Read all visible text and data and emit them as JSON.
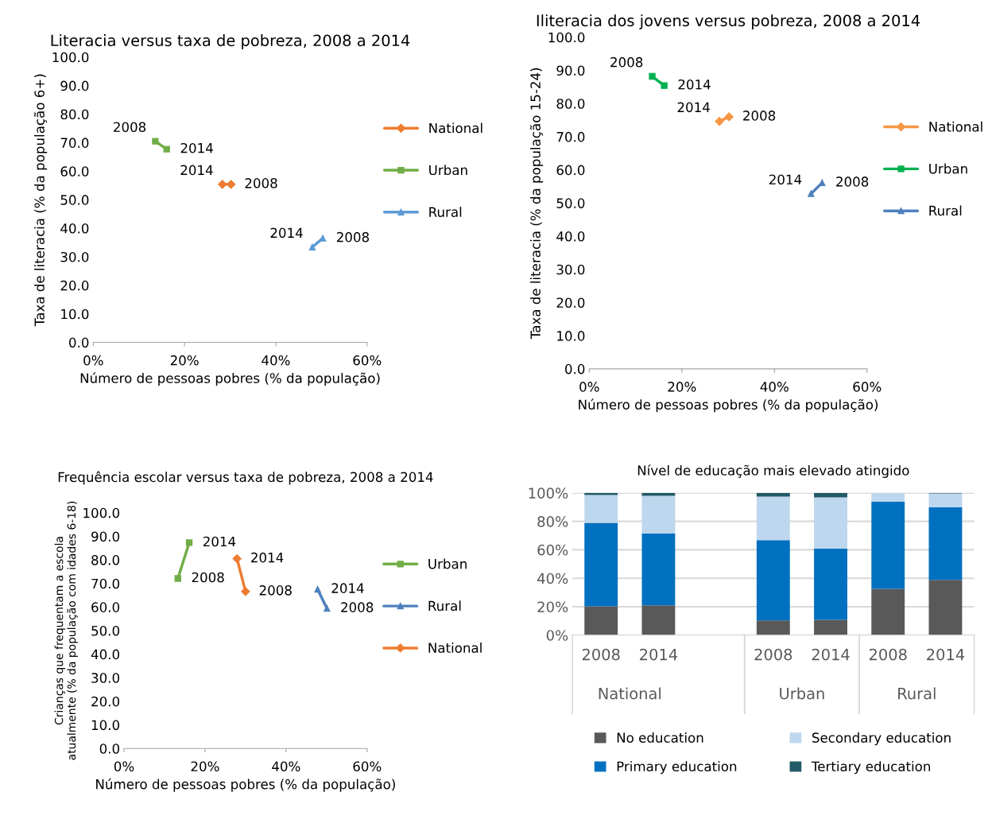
{
  "chart_data": [
    {
      "type": "line",
      "title": "Literacia versus taxa de pobreza, 2008 a 2014",
      "xlabel": "Número de pessoas pobres (% da população)",
      "ylabel": "Taxa de literacia (% da população 6+)",
      "xlim": [
        0,
        60
      ],
      "xticks": [
        {
          "value": 0,
          "label": "0%"
        },
        {
          "value": 20,
          "label": "20%"
        },
        {
          "value": 40,
          "label": "40%"
        },
        {
          "value": 60,
          "label": "60%"
        }
      ],
      "ylim": [
        0,
        100
      ],
      "yticks": [
        {
          "value": 0,
          "label": "0.0"
        },
        {
          "value": 10,
          "label": "10.0"
        },
        {
          "value": 20,
          "label": "20.0"
        },
        {
          "value": 30,
          "label": "30.0"
        },
        {
          "value": 40,
          "label": "40.0"
        },
        {
          "value": 50,
          "label": "50.0"
        },
        {
          "value": 60,
          "label": "60.0"
        },
        {
          "value": 70,
          "label": "70.0"
        },
        {
          "value": 80,
          "label": "80.0"
        },
        {
          "value": 90,
          "label": "90.0"
        },
        {
          "value": 100,
          "label": "100.0"
        }
      ],
      "grid": false,
      "legend": "right",
      "line_style": "solid",
      "series": [
        {
          "name": "National",
          "color": "#ed7d31",
          "marker": "diamond",
          "x": [
            30.2,
            28.3
          ],
          "values": [
            55.4,
            55.4
          ]
        },
        {
          "name": "Urban",
          "color": "#70ad47",
          "marker": "square",
          "x": [
            13.6,
            16.1
          ],
          "values": [
            70.5,
            67.7
          ]
        },
        {
          "name": "Rural",
          "color": "#5b9bd5",
          "marker": "triangle",
          "x": [
            50.3,
            48.0
          ],
          "values": [
            36.5,
            33.4
          ]
        }
      ],
      "annotations": [
        {
          "text": "2008",
          "x": 30.2,
          "y": 55.4
        },
        {
          "text": "2014",
          "x": 28.3,
          "y": 55.4
        },
        {
          "text": "2008",
          "x": 13.6,
          "y": 70.5
        },
        {
          "text": "2014",
          "x": 16.1,
          "y": 67.7
        },
        {
          "text": "2008",
          "x": 50.3,
          "y": 36.5
        },
        {
          "text": "2014",
          "x": 48.0,
          "y": 33.4
        }
      ]
    },
    {
      "type": "line",
      "title": "Iliteracia dos jovens versus pobreza, 2008 a 2014",
      "xlabel": "Número de pessoas pobres (% da população)",
      "ylabel": "Taxa de literacia (% da população 15-24)",
      "xlim": [
        0,
        60
      ],
      "xticks": [
        {
          "value": 0,
          "label": "0%"
        },
        {
          "value": 20,
          "label": "20%"
        },
        {
          "value": 40,
          "label": "40%"
        },
        {
          "value": 60,
          "label": "60%"
        }
      ],
      "ylim": [
        0,
        100
      ],
      "yticks": [
        {
          "value": 0,
          "label": "0.0"
        },
        {
          "value": 10,
          "label": "10.0"
        },
        {
          "value": 20,
          "label": "20.0"
        },
        {
          "value": 30,
          "label": "30.0"
        },
        {
          "value": 40,
          "label": "40.0"
        },
        {
          "value": 50,
          "label": "50.0"
        },
        {
          "value": 60,
          "label": "60.0"
        },
        {
          "value": 70,
          "label": "70.0"
        },
        {
          "value": 80,
          "label": "80.0"
        },
        {
          "value": 90,
          "label": "90.0"
        },
        {
          "value": 100,
          "label": "100.0"
        }
      ],
      "grid": false,
      "legend": "right",
      "line_style": "solid",
      "series": [
        {
          "name": "National",
          "color": "#f79646",
          "marker": "diamond",
          "x": [
            30.2,
            28.1
          ],
          "values": [
            76.0,
            74.6
          ]
        },
        {
          "name": "Urban",
          "color": "#00b050",
          "marker": "square",
          "x": [
            13.6,
            16.2
          ],
          "values": [
            88.2,
            85.4
          ]
        },
        {
          "name": "Rural",
          "color": "#4f81bd",
          "marker": "triangle",
          "x": [
            50.3,
            47.9
          ],
          "values": [
            56.1,
            52.8
          ]
        }
      ],
      "annotations": [
        {
          "text": "2008",
          "x": 30.2,
          "y": 76.0
        },
        {
          "text": "2014",
          "x": 28.1,
          "y": 74.6
        },
        {
          "text": "2008",
          "x": 13.6,
          "y": 88.2
        },
        {
          "text": "2014",
          "x": 16.2,
          "y": 85.4
        },
        {
          "text": "2008",
          "x": 50.3,
          "y": 56.1
        },
        {
          "text": "2014",
          "x": 47.9,
          "y": 52.8
        }
      ]
    },
    {
      "type": "line",
      "title": "Frequência escolar versus taxa de pobreza, 2008 a 2014",
      "xlabel": "Número de pessoas pobres (% da população)",
      "ylabel": "Crianças que frequentam a escola atualmente (% da população com idades 6-18)",
      "xlim": [
        0,
        60
      ],
      "xticks": [
        {
          "value": 0,
          "label": "0%"
        },
        {
          "value": 20,
          "label": "20%"
        },
        {
          "value": 40,
          "label": "40%"
        },
        {
          "value": 60,
          "label": "60%"
        }
      ],
      "ylim": [
        0,
        100
      ],
      "yticks": [
        {
          "value": 0,
          "label": "0.0"
        },
        {
          "value": 10,
          "label": "10.0"
        },
        {
          "value": 20,
          "label": "20.0"
        },
        {
          "value": 30,
          "label": "30.0"
        },
        {
          "value": 40,
          "label": "40.0"
        },
        {
          "value": 50,
          "label": "50.0"
        },
        {
          "value": 60,
          "label": "60.0"
        },
        {
          "value": 70,
          "label": "70.0"
        },
        {
          "value": 80,
          "label": "80.0"
        },
        {
          "value": 90,
          "label": "90.0"
        },
        {
          "value": 100,
          "label": "100.0"
        }
      ],
      "grid": false,
      "legend": "right",
      "line_style": "solid",
      "series": [
        {
          "name": "Urban",
          "color": "#70ad47",
          "marker": "square",
          "x": [
            13.3,
            16.1
          ],
          "values": [
            72.1,
            87.3
          ]
        },
        {
          "name": "Rural",
          "color": "#4f81bd",
          "marker": "triangle",
          "x": [
            50.1,
            47.8
          ],
          "values": [
            59.4,
            67.5
          ]
        },
        {
          "name": "National",
          "color": "#ed7d31",
          "marker": "diamond",
          "x": [
            30.0,
            27.9
          ],
          "values": [
            66.6,
            80.5
          ]
        }
      ],
      "annotations": [
        {
          "text": "2008",
          "x": 13.3,
          "y": 72.1
        },
        {
          "text": "2014",
          "x": 16.1,
          "y": 87.3
        },
        {
          "text": "2008",
          "x": 50.1,
          "y": 59.4
        },
        {
          "text": "2014",
          "x": 47.8,
          "y": 67.5
        },
        {
          "text": "2008",
          "x": 30.0,
          "y": 66.6
        },
        {
          "text": "2014",
          "x": 27.9,
          "y": 80.5
        }
      ]
    },
    {
      "type": "bar",
      "stacked": true,
      "title": "Nível de educação mais elevado atingido",
      "categories": [
        "2008",
        "2014",
        null,
        "2008",
        "2014",
        "2008",
        "2014"
      ],
      "annotations": [
        "National",
        "Urban",
        "Rural"
      ],
      "ylim": [
        0,
        100
      ],
      "yticks": [
        {
          "value": 0,
          "label": "0%"
        },
        {
          "value": 20,
          "label": "20%"
        },
        {
          "value": 40,
          "label": "40%"
        },
        {
          "value": 60,
          "label": "60%"
        },
        {
          "value": 80,
          "label": "80%"
        },
        {
          "value": 100,
          "label": "100%"
        }
      ],
      "grid": "y",
      "legend": "bottom",
      "series": [
        {
          "name": "No education",
          "color": "#595959",
          "values": [
            20.3,
            20.9,
            null,
            10.3,
            10.8,
            32.6,
            38.8
          ]
        },
        {
          "name": "Primary education",
          "color": "#0070c0",
          "values": [
            58.6,
            50.6,
            null,
            56.5,
            50.0,
            61.1,
            51.1
          ]
        },
        {
          "name": "Secondary education",
          "color": "#bdd7ee",
          "values": [
            19.6,
            26.4,
            null,
            30.6,
            36.0,
            6.3,
            9.7
          ]
        },
        {
          "name": "Tertiary education",
          "color": "#215967",
          "values": [
            1.5,
            2.1,
            null,
            2.6,
            3.2,
            0.0,
            0.4
          ]
        }
      ]
    }
  ]
}
